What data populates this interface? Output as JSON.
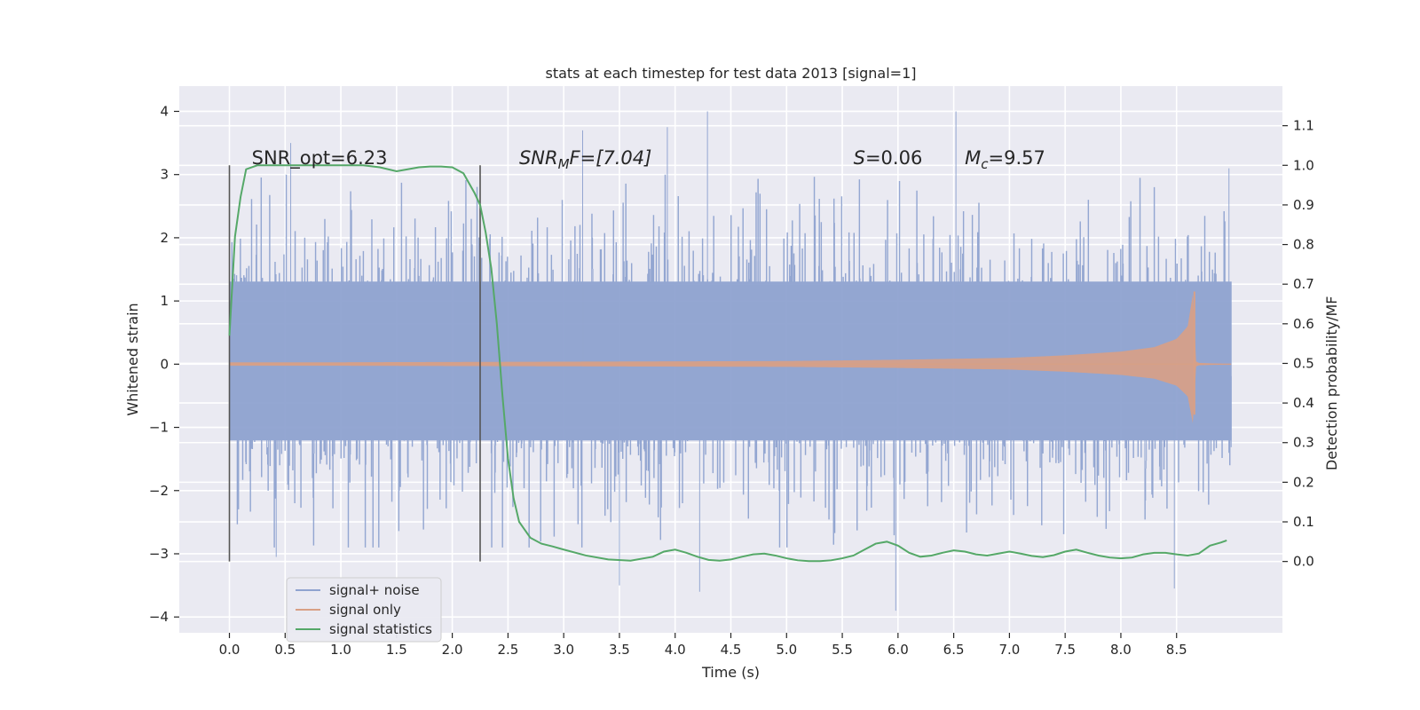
{
  "chart_data": {
    "type": "line",
    "title": "stats at each timestep for test data 2013 [signal=1]",
    "xlabel": "Time (s)",
    "ylabel": "Whitened strain",
    "y2label": "Detection probability/MF",
    "xlim": [
      -0.45,
      9.45
    ],
    "ylim": [
      -4.25,
      4.4
    ],
    "y2lim": [
      -0.18,
      1.2
    ],
    "xticks": [
      0.0,
      0.5,
      1.0,
      1.5,
      2.0,
      2.5,
      3.0,
      3.5,
      4.0,
      4.5,
      5.0,
      5.5,
      6.0,
      6.5,
      7.0,
      7.5,
      8.0,
      8.5
    ],
    "xtick_labels": [
      "0.0",
      "0.5",
      "1.0",
      "1.5",
      "2.0",
      "2.5",
      "3.0",
      "3.5",
      "4.0",
      "4.5",
      "5.0",
      "5.5",
      "6.0",
      "6.5",
      "7.0",
      "7.5",
      "8.0",
      "8.5"
    ],
    "yticks": [
      -4,
      -3,
      -2,
      -1,
      0,
      1,
      2,
      3,
      4
    ],
    "ytick_labels": [
      "−4",
      "−3",
      "−2",
      "−1",
      "0",
      "1",
      "2",
      "3",
      "4"
    ],
    "y2ticks": [
      0.0,
      0.1,
      0.2,
      0.3,
      0.4,
      0.5,
      0.6,
      0.7,
      0.8,
      0.9,
      1.0,
      1.1
    ],
    "y2tick_labels": [
      "0.0",
      "0.1",
      "0.2",
      "0.3",
      "0.4",
      "0.5",
      "0.6",
      "0.7",
      "0.8",
      "0.9",
      "1.0",
      "1.1"
    ],
    "grid": true,
    "legend_position": "lower-left",
    "annotations": {
      "snr_opt": "SNR_opt=6.23",
      "snr_mf_name": "SNR",
      "snr_mf_sub": "M",
      "snr_mf_rest": "F=[7.04]",
      "s_name": "S",
      "s_rest": "=0.06",
      "mc_name": "M",
      "mc_sub": "c",
      "mc_rest": "=9.57"
    },
    "vlines": [
      0.0,
      2.25
    ],
    "colors": {
      "signal_noise": "#8fa3d0",
      "signal_only": "#d9a085",
      "signal_statistics": "#55a868",
      "vline": "#555555",
      "background": "#eaeaf2",
      "grid": "#ffffff"
    },
    "series": [
      {
        "name": "signal+ noise",
        "axis": "left",
        "description_values": {
          "x_range": [
            0.0,
            8.99
          ],
          "y_range": [
            -3.9,
            4.05
          ]
        },
        "peaks": [
          [
            0.55,
            3.5
          ],
          [
            3.17,
            3.7
          ],
          [
            3.93,
            3.75
          ],
          [
            4.29,
            4.0
          ],
          [
            6.52,
            4.0
          ],
          [
            8.97,
            3.1
          ],
          [
            0.42,
            -3.05
          ],
          [
            3.5,
            -3.5
          ],
          [
            5.98,
            -3.9
          ],
          [
            8.48,
            -3.55
          ],
          [
            4.22,
            -3.6
          ]
        ]
      },
      {
        "name": "signal only",
        "axis": "left",
        "envelope_t": [
          0.0,
          1.0,
          2.0,
          3.0,
          4.0,
          5.0,
          6.0,
          7.0,
          7.5,
          8.0,
          8.3,
          8.5,
          8.6,
          8.65,
          8.67,
          8.7,
          9.0
        ],
        "envelope_amp": [
          0.03,
          0.03,
          0.035,
          0.04,
          0.045,
          0.05,
          0.07,
          0.1,
          0.14,
          0.2,
          0.27,
          0.4,
          0.6,
          1.15,
          0.05,
          0.02,
          0.0
        ]
      },
      {
        "name": "signal statistics",
        "axis": "right",
        "x": [
          0.0,
          0.05,
          0.1,
          0.15,
          0.25,
          0.4,
          0.6,
          0.8,
          1.0,
          1.2,
          1.35,
          1.5,
          1.6,
          1.7,
          1.8,
          1.9,
          2.0,
          2.1,
          2.2,
          2.25,
          2.3,
          2.35,
          2.4,
          2.45,
          2.5,
          2.55,
          2.6,
          2.7,
          2.8,
          2.9,
          3.0,
          3.2,
          3.4,
          3.6,
          3.8,
          3.9,
          4.0,
          4.1,
          4.2,
          4.3,
          4.4,
          4.5,
          4.6,
          4.7,
          4.8,
          4.9,
          5.0,
          5.1,
          5.2,
          5.3,
          5.4,
          5.5,
          5.6,
          5.7,
          5.8,
          5.9,
          6.0,
          6.1,
          6.2,
          6.3,
          6.4,
          6.5,
          6.6,
          6.7,
          6.8,
          6.9,
          7.0,
          7.1,
          7.2,
          7.3,
          7.4,
          7.5,
          7.6,
          7.7,
          7.8,
          7.9,
          8.0,
          8.1,
          8.2,
          8.3,
          8.4,
          8.5,
          8.6,
          8.7,
          8.8,
          8.9,
          8.95
        ],
        "y": [
          0.57,
          0.82,
          0.92,
          0.99,
          1.0,
          1.0,
          1.0,
          1.0,
          1.0,
          1.0,
          0.995,
          0.985,
          0.99,
          0.995,
          0.997,
          0.997,
          0.995,
          0.98,
          0.93,
          0.9,
          0.83,
          0.74,
          0.6,
          0.42,
          0.26,
          0.16,
          0.1,
          0.06,
          0.045,
          0.038,
          0.03,
          0.015,
          0.005,
          0.002,
          0.012,
          0.025,
          0.03,
          0.022,
          0.012,
          0.004,
          0.002,
          0.005,
          0.012,
          0.018,
          0.02,
          0.015,
          0.008,
          0.003,
          0.001,
          0.001,
          0.003,
          0.008,
          0.015,
          0.03,
          0.045,
          0.05,
          0.04,
          0.022,
          0.012,
          0.015,
          0.022,
          0.028,
          0.025,
          0.018,
          0.015,
          0.02,
          0.025,
          0.02,
          0.014,
          0.011,
          0.016,
          0.025,
          0.03,
          0.022,
          0.015,
          0.01,
          0.008,
          0.01,
          0.018,
          0.022,
          0.022,
          0.018,
          0.015,
          0.02,
          0.04,
          0.048,
          0.053
        ]
      }
    ]
  }
}
